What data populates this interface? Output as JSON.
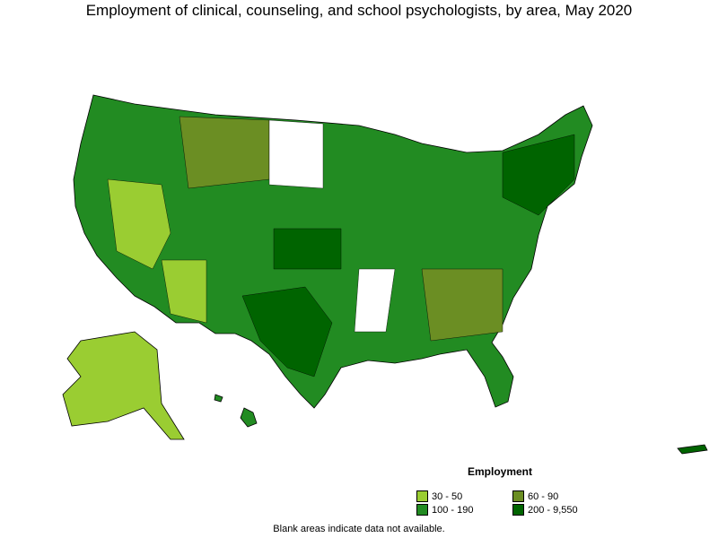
{
  "title": "Employment of clinical, counseling, and school psychologists, by area, May 2020",
  "legend": {
    "title": "Employment",
    "items": [
      {
        "label": "30 - 50",
        "color": "#9acd32"
      },
      {
        "label": "60 - 90",
        "color": "#6b8e23"
      },
      {
        "label": "100 - 190",
        "color": "#228b22"
      },
      {
        "label": "200 - 9,550",
        "color": "#006400"
      }
    ]
  },
  "footnote": "Blank areas indicate data not available."
}
